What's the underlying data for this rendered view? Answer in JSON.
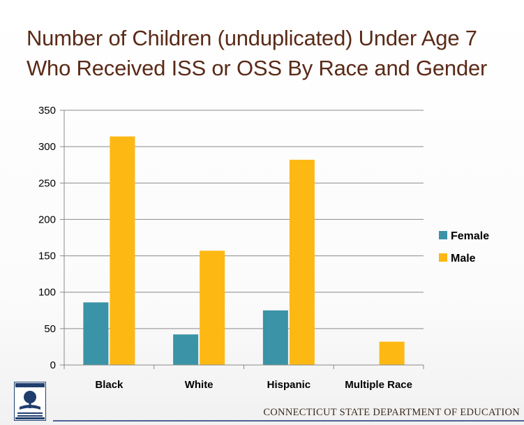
{
  "slide": {
    "title_line1": "Number of Children (unduplicated) Under Age 7",
    "title_line2": "Who Received ISS or OSS By Race and Gender",
    "footer": "CONNECTICUT STATE DEPARTMENT OF EDUCATION",
    "logo": "connecticut-state-seal-logo"
  },
  "colors": {
    "female": "#3a93a6",
    "male": "#fdb813",
    "title": "#5a2a17",
    "footer_line": "#4c5f9a"
  },
  "chart_data": {
    "type": "bar",
    "title": "Number of Children (unduplicated) Under Age 7 Who Received ISS or OSS By Race and Gender",
    "xlabel": "",
    "ylabel": "",
    "categories": [
      "Black",
      "White",
      "Hispanic",
      "Multiple Race"
    ],
    "series": [
      {
        "name": "Female",
        "values": [
          86,
          42,
          75,
          0
        ]
      },
      {
        "name": "Male",
        "values": [
          314,
          157,
          282,
          32
        ]
      }
    ],
    "ylim": [
      0,
      350
    ],
    "yticks": [
      0,
      50,
      100,
      150,
      200,
      250,
      300,
      350
    ],
    "grid": true,
    "legend": "right"
  }
}
